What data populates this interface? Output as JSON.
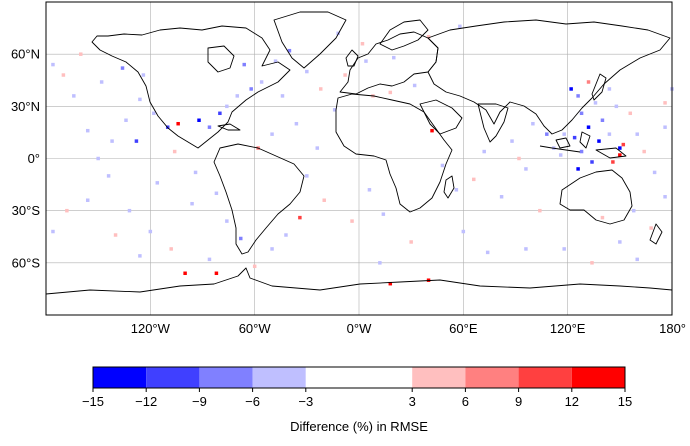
{
  "map": {
    "projection": "plate-carree",
    "lon_range": [
      -180,
      180
    ],
    "lat_range": [
      -90,
      90
    ],
    "grid": true,
    "lat_ticks": [
      {
        "value": 60,
        "label": "60°N"
      },
      {
        "value": 30,
        "label": "30°N"
      },
      {
        "value": 0,
        "label": "0°"
      },
      {
        "value": -30,
        "label": "30°S"
      },
      {
        "value": -60,
        "label": "60°S"
      }
    ],
    "lon_ticks": [
      {
        "value": -120,
        "label": "120°W"
      },
      {
        "value": -60,
        "label": "60°W"
      },
      {
        "value": 0,
        "label": "0°W"
      },
      {
        "value": 60,
        "label": "60°E"
      },
      {
        "value": 120,
        "label": "120°E"
      },
      {
        "value": 180,
        "label": "180°"
      }
    ],
    "coastline": true,
    "country_borders": true
  },
  "colorbar": {
    "label": "Difference (%) in RMSE",
    "ticks": [
      "−15",
      "−12",
      "−9",
      "−6",
      "−3",
      "3",
      "6",
      "9",
      "12",
      "15"
    ],
    "bins": [
      {
        "from": -15,
        "to": -12,
        "color": "#0000ff"
      },
      {
        "from": -12,
        "to": -9,
        "color": "#4040ff"
      },
      {
        "from": -9,
        "to": -6,
        "color": "#8080ff"
      },
      {
        "from": -6,
        "to": -3,
        "color": "#bfbfff"
      },
      {
        "from": -3,
        "to": 3,
        "color": "#ffffff"
      },
      {
        "from": 3,
        "to": 6,
        "color": "#ffbfbf"
      },
      {
        "from": 6,
        "to": 9,
        "color": "#ff8080"
      },
      {
        "from": 9,
        "to": 12,
        "color": "#ff4040"
      },
      {
        "from": 12,
        "to": 15,
        "color": "#ff0000"
      }
    ]
  },
  "chart_data": {
    "type": "heatmap",
    "title": "",
    "xlabel": "",
    "ylabel": "",
    "colorbar_label": "Difference (%) in RMSE",
    "cell_size_deg": 2,
    "cells": [
      {
        "lon": 132,
        "lat": 18,
        "value": -13
      },
      {
        "lon": 138,
        "lat": 10,
        "value": -14
      },
      {
        "lon": 150,
        "lat": 6,
        "value": -13
      },
      {
        "lon": 150,
        "lat": 2,
        "value": 13
      },
      {
        "lon": 124,
        "lat": 12,
        "value": -10
      },
      {
        "lon": 128,
        "lat": 4,
        "value": -8
      },
      {
        "lon": 140,
        "lat": 22,
        "value": -8
      },
      {
        "lon": 112,
        "lat": 6,
        "value": -5
      },
      {
        "lon": 116,
        "lat": 2,
        "value": -5
      },
      {
        "lon": 146,
        "lat": -2,
        "value": 10
      },
      {
        "lon": 152,
        "lat": 8,
        "value": 10
      },
      {
        "lon": 126,
        "lat": -6,
        "value": -13
      },
      {
        "lon": 134,
        "lat": -2,
        "value": -10
      },
      {
        "lon": 118,
        "lat": 14,
        "value": -5
      },
      {
        "lon": 144,
        "lat": 14,
        "value": -5
      },
      {
        "lon": 128,
        "lat": 26,
        "value": -8
      },
      {
        "lon": 136,
        "lat": 32,
        "value": -5
      },
      {
        "lon": 144,
        "lat": 40,
        "value": -5
      },
      {
        "lon": 148,
        "lat": 30,
        "value": -5
      },
      {
        "lon": 156,
        "lat": 26,
        "value": 5
      },
      {
        "lon": 160,
        "lat": 14,
        "value": -5
      },
      {
        "lon": 164,
        "lat": 4,
        "value": 5
      },
      {
        "lon": 170,
        "lat": -8,
        "value": -5
      },
      {
        "lon": 176,
        "lat": 18,
        "value": -5
      },
      {
        "lon": 122,
        "lat": 40,
        "value": -13
      },
      {
        "lon": 126,
        "lat": 36,
        "value": -8
      },
      {
        "lon": 132,
        "lat": 44,
        "value": 8
      },
      {
        "lon": 96,
        "lat": -6,
        "value": -5
      },
      {
        "lon": 88,
        "lat": 10,
        "value": -5
      },
      {
        "lon": 72,
        "lat": 4,
        "value": -5
      },
      {
        "lon": 66,
        "lat": -12,
        "value": 5
      },
      {
        "lon": 56,
        "lat": -18,
        "value": -5
      },
      {
        "lon": 48,
        "lat": -4,
        "value": -5
      },
      {
        "lon": 82,
        "lat": -22,
        "value": -5
      },
      {
        "lon": 104,
        "lat": -30,
        "value": 5
      },
      {
        "lon": 60,
        "lat": -42,
        "value": -5
      },
      {
        "lon": 96,
        "lat": -52,
        "value": -5
      },
      {
        "lon": 30,
        "lat": -48,
        "value": 5
      },
      {
        "lon": 12,
        "lat": -60,
        "value": -5
      },
      {
        "lon": 150,
        "lat": -48,
        "value": -5
      },
      {
        "lon": 168,
        "lat": -40,
        "value": 5
      },
      {
        "lon": 176,
        "lat": -22,
        "value": -5
      },
      {
        "lon": 42,
        "lat": 16,
        "value": 13
      },
      {
        "lon": 40,
        "lat": -70,
        "value": 13
      },
      {
        "lon": 18,
        "lat": -72,
        "value": 13
      },
      {
        "lon": -104,
        "lat": 20,
        "value": 13
      },
      {
        "lon": -110,
        "lat": 18,
        "value": -10
      },
      {
        "lon": -92,
        "lat": 22,
        "value": -13
      },
      {
        "lon": -86,
        "lat": 18,
        "value": -8
      },
      {
        "lon": -80,
        "lat": 26,
        "value": -10
      },
      {
        "lon": -76,
        "lat": 30,
        "value": -5
      },
      {
        "lon": -70,
        "lat": 36,
        "value": -5
      },
      {
        "lon": -62,
        "lat": 40,
        "value": -8
      },
      {
        "lon": -56,
        "lat": 44,
        "value": -5
      },
      {
        "lon": -48,
        "lat": 56,
        "value": -5
      },
      {
        "lon": -40,
        "lat": 62,
        "value": -8
      },
      {
        "lon": -30,
        "lat": 50,
        "value": -5
      },
      {
        "lon": -22,
        "lat": 40,
        "value": 5
      },
      {
        "lon": -14,
        "lat": 28,
        "value": -5
      },
      {
        "lon": -36,
        "lat": 20,
        "value": -5
      },
      {
        "lon": -50,
        "lat": 14,
        "value": -5
      },
      {
        "lon": -58,
        "lat": 6,
        "value": 8
      },
      {
        "lon": -24,
        "lat": 6,
        "value": -5
      },
      {
        "lon": -30,
        "lat": -10,
        "value": -5
      },
      {
        "lon": -20,
        "lat": -24,
        "value": 5
      },
      {
        "lon": -34,
        "lat": -34,
        "value": 10
      },
      {
        "lon": -42,
        "lat": -44,
        "value": -5
      },
      {
        "lon": -50,
        "lat": -52,
        "value": -5
      },
      {
        "lon": -60,
        "lat": -62,
        "value": 5
      },
      {
        "lon": -68,
        "lat": -46,
        "value": -8
      },
      {
        "lon": -76,
        "lat": -36,
        "value": -5
      },
      {
        "lon": -82,
        "lat": -20,
        "value": -5
      },
      {
        "lon": -94,
        "lat": -8,
        "value": -5
      },
      {
        "lon": -106,
        "lat": 4,
        "value": 5
      },
      {
        "lon": -118,
        "lat": 26,
        "value": -5
      },
      {
        "lon": -126,
        "lat": 34,
        "value": -5
      },
      {
        "lon": -134,
        "lat": 22,
        "value": -5
      },
      {
        "lon": -142,
        "lat": 10,
        "value": -5
      },
      {
        "lon": -150,
        "lat": 0,
        "value": -5
      },
      {
        "lon": -156,
        "lat": 16,
        "value": -5
      },
      {
        "lon": -164,
        "lat": 36,
        "value": -5
      },
      {
        "lon": -170,
        "lat": 48,
        "value": 5
      },
      {
        "lon": -176,
        "lat": 54,
        "value": -5
      },
      {
        "lon": -160,
        "lat": 60,
        "value": 5
      },
      {
        "lon": -148,
        "lat": 44,
        "value": -5
      },
      {
        "lon": -136,
        "lat": 52,
        "value": -8
      },
      {
        "lon": -124,
        "lat": 48,
        "value": -5
      },
      {
        "lon": -144,
        "lat": -10,
        "value": -5
      },
      {
        "lon": -156,
        "lat": -24,
        "value": -5
      },
      {
        "lon": -168,
        "lat": -30,
        "value": 5
      },
      {
        "lon": -176,
        "lat": -42,
        "value": -5
      },
      {
        "lon": -132,
        "lat": -30,
        "value": -5
      },
      {
        "lon": -120,
        "lat": -42,
        "value": -5
      },
      {
        "lon": -108,
        "lat": -52,
        "value": 5
      },
      {
        "lon": -96,
        "lat": -26,
        "value": -5
      },
      {
        "lon": -116,
        "lat": -14,
        "value": -5
      },
      {
        "lon": -126,
        "lat": -56,
        "value": -5
      },
      {
        "lon": -140,
        "lat": -44,
        "value": 5
      },
      {
        "lon": -86,
        "lat": -58,
        "value": -5
      },
      {
        "lon": -100,
        "lat": -66,
        "value": 13
      },
      {
        "lon": -82,
        "lat": -66,
        "value": 13
      },
      {
        "lon": -128,
        "lat": 10,
        "value": -10
      },
      {
        "lon": -66,
        "lat": 54,
        "value": -8
      },
      {
        "lon": -44,
        "lat": 36,
        "value": -5
      },
      {
        "lon": 8,
        "lat": 36,
        "value": 5
      },
      {
        "lon": 18,
        "lat": 38,
        "value": 5
      },
      {
        "lon": 32,
        "lat": 42,
        "value": -5
      },
      {
        "lon": 4,
        "lat": 56,
        "value": -5
      },
      {
        "lon": -8,
        "lat": 48,
        "value": 5
      },
      {
        "lon": 2,
        "lat": 66,
        "value": 5
      },
      {
        "lon": 20,
        "lat": 58,
        "value": -5
      },
      {
        "lon": 40,
        "lat": 70,
        "value": 5
      },
      {
        "lon": 58,
        "lat": 76,
        "value": -5
      },
      {
        "lon": -12,
        "lat": 72,
        "value": -5
      },
      {
        "lon": 100,
        "lat": 20,
        "value": -5
      },
      {
        "lon": 92,
        "lat": 0,
        "value": 5
      },
      {
        "lon": 108,
        "lat": 14,
        "value": -8
      },
      {
        "lon": 140,
        "lat": -34,
        "value": 5
      },
      {
        "lon": 158,
        "lat": -30,
        "value": -5
      },
      {
        "lon": 176,
        "lat": 32,
        "value": 5
      },
      {
        "lon": 180,
        "lat": 40,
        "value": -5
      },
      {
        "lon": 6,
        "lat": -18,
        "value": -5
      },
      {
        "lon": -4,
        "lat": -36,
        "value": 5
      },
      {
        "lon": 14,
        "lat": -32,
        "value": -5
      },
      {
        "lon": 74,
        "lat": -54,
        "value": -5
      },
      {
        "lon": 118,
        "lat": -52,
        "value": -5
      },
      {
        "lon": 134,
        "lat": -60,
        "value": 5
      },
      {
        "lon": 160,
        "lat": -58,
        "value": -5
      }
    ]
  }
}
